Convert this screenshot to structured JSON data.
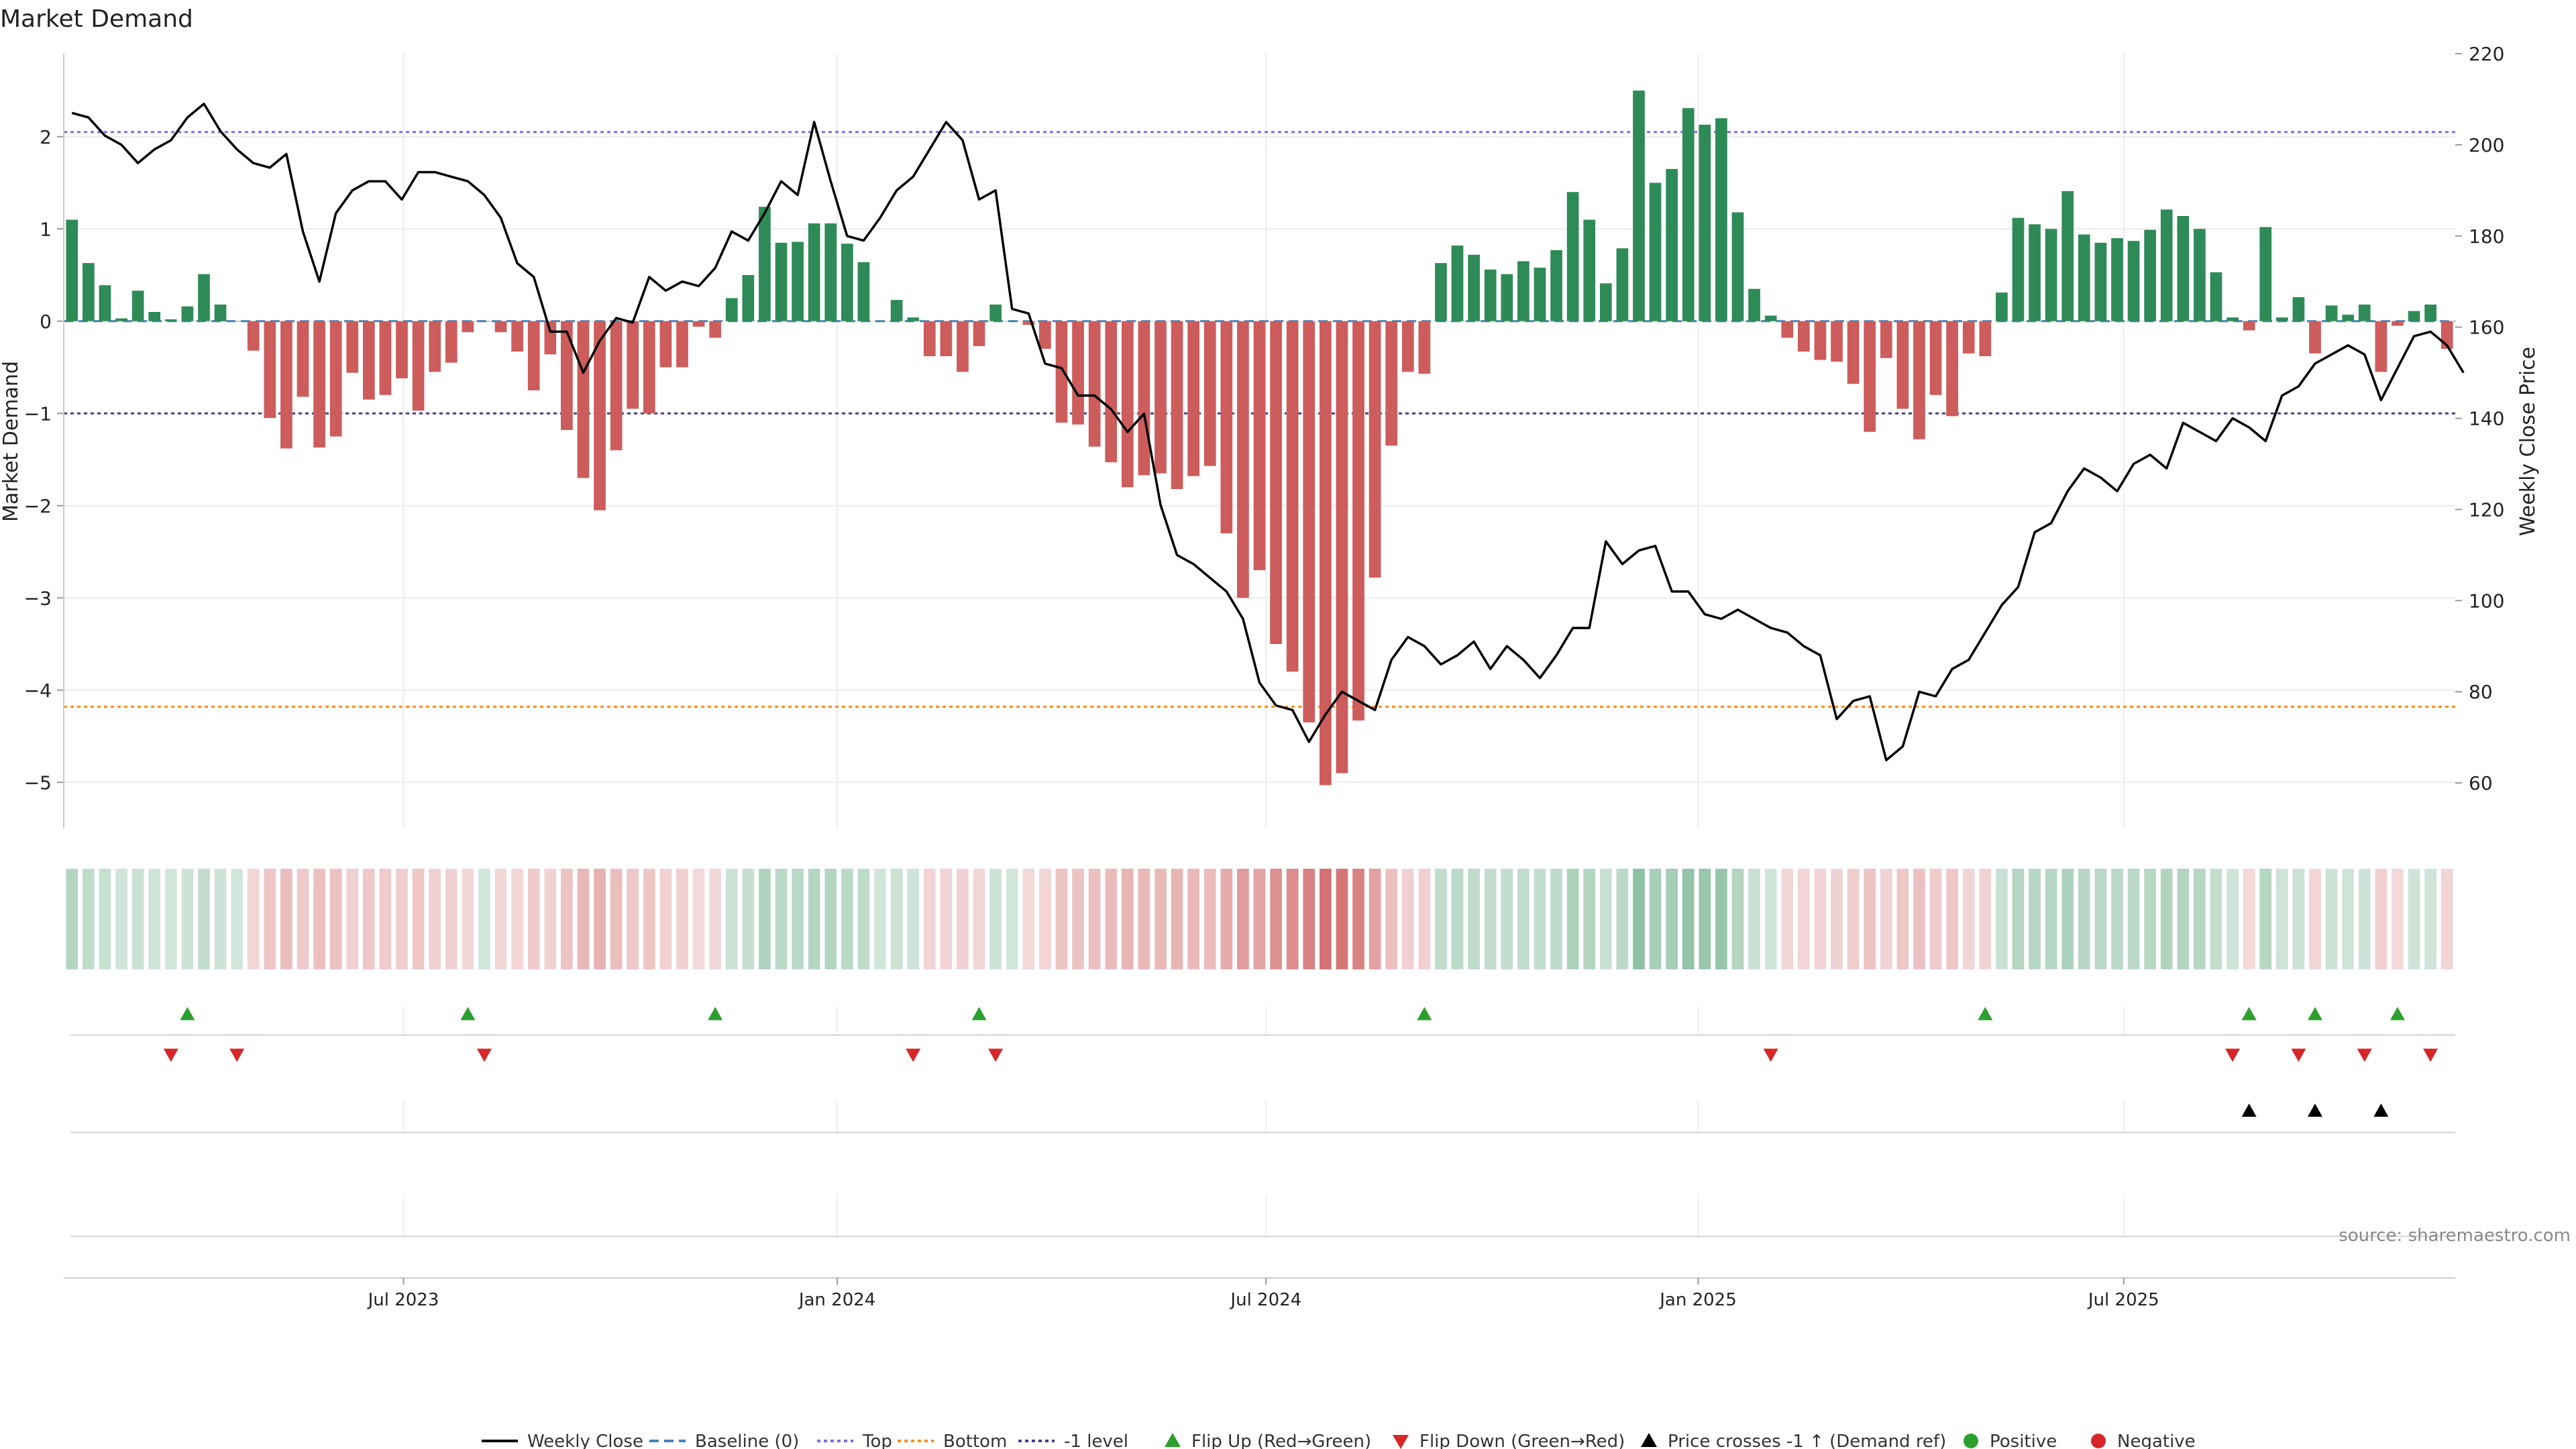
{
  "chart_data": {
    "type": "bar",
    "title": "Market Demand",
    "ylabel_left": "Market Demand",
    "ylabel_right": "Weekly Close Price",
    "ylim_left": [
      -5.5,
      2.9
    ],
    "ylim_right": [
      50,
      220
    ],
    "left_ticks": [
      2,
      1,
      0,
      -1,
      -2,
      -3,
      -4,
      -5
    ],
    "left_tick_labels": [
      "2",
      "1",
      "0",
      "−1",
      "−2",
      "−3",
      "−4",
      "−5"
    ],
    "right_ticks": [
      220,
      200,
      180,
      160,
      140,
      120,
      100,
      80,
      60
    ],
    "right_tick_labels": [
      "220",
      "200",
      "180",
      "160",
      "140",
      "120",
      "100",
      "80",
      "60"
    ],
    "x_tick_labels": [
      "Jul 2023",
      "Jan 2024",
      "Jul 2024",
      "Jan 2025",
      "Jul 2025"
    ],
    "x_tick_indices": [
      20.6,
      46.9,
      72.9,
      99.1,
      124.9
    ],
    "reference_lines": {
      "top": 2.05,
      "bottom": -4.18,
      "minus_one": -1.0,
      "baseline": 0
    },
    "series": [
      {
        "name": "Market Demand",
        "values": [
          1.1,
          0.63,
          0.39,
          0.03,
          0.33,
          0.1,
          0.02,
          0.16,
          0.51,
          0.18,
          0.0,
          -0.32,
          -1.05,
          -1.38,
          -0.82,
          -1.37,
          -1.25,
          -0.56,
          -0.85,
          -0.8,
          -0.62,
          -0.97,
          -0.55,
          -0.45,
          -0.12,
          0.0,
          -0.12,
          -0.33,
          -0.75,
          -0.36,
          -1.18,
          -1.7,
          -2.05,
          -1.4,
          -0.95,
          -1.0,
          -0.5,
          -0.5,
          -0.06,
          -0.18,
          0.25,
          0.5,
          1.24,
          0.85,
          0.86,
          1.06,
          1.06,
          0.84,
          0.64,
          0.0,
          0.23,
          0.04,
          -0.38,
          -0.38,
          -0.55,
          -0.27,
          0.18,
          0.0,
          -0.04,
          -0.3,
          -1.1,
          -1.12,
          -1.36,
          -1.53,
          -1.8,
          -1.67,
          -1.65,
          -1.82,
          -1.68,
          -1.57,
          -2.3,
          -3.0,
          -2.7,
          -3.5,
          -3.8,
          -4.35,
          -5.03,
          -4.9,
          -4.33,
          -2.78,
          -1.35,
          -0.55,
          -0.57,
          0.63,
          0.82,
          0.72,
          0.56,
          0.51,
          0.65,
          0.58,
          0.77,
          1.4,
          1.1,
          0.41,
          0.79,
          2.5,
          1.5,
          1.65,
          2.31,
          2.13,
          2.2,
          1.18,
          0.35,
          0.06,
          -0.18,
          -0.33,
          -0.42,
          -0.44,
          -0.68,
          -1.2,
          -0.4,
          -0.95,
          -1.28,
          -0.8,
          -1.03,
          -0.35,
          -0.38,
          0.31,
          1.12,
          1.05,
          1.0,
          1.41,
          0.94,
          0.85,
          0.9,
          0.87,
          0.99,
          1.21,
          1.14,
          1.0,
          0.53,
          0.04,
          -0.1,
          1.02,
          0.04,
          0.26,
          -0.35,
          0.17,
          0.07,
          0.18,
          -0.55,
          -0.05,
          0.11,
          0.18,
          -0.3
        ]
      },
      {
        "name": "Weekly Close",
        "values": [
          207,
          206,
          202,
          200,
          196,
          199,
          201,
          206,
          209,
          203,
          199,
          196,
          195,
          198,
          181,
          170,
          185,
          190,
          192,
          192,
          188,
          194,
          194,
          193,
          192,
          189,
          184,
          174,
          171,
          159,
          159,
          150,
          157,
          162,
          161,
          171,
          168,
          170,
          169,
          173,
          181,
          179,
          185,
          192,
          189,
          205,
          192,
          180,
          179,
          184,
          190,
          193,
          199,
          205,
          201,
          188,
          190,
          164,
          163,
          152,
          151,
          145,
          145,
          142,
          137,
          141,
          121,
          110,
          108,
          105,
          102,
          96,
          82,
          77,
          76,
          69,
          75,
          80,
          78,
          76,
          87,
          92,
          90,
          86,
          88,
          91,
          85,
          90,
          87,
          83,
          88,
          94,
          94,
          113,
          108,
          111,
          112,
          102,
          102,
          97,
          96,
          98,
          96,
          94,
          93,
          90,
          88,
          74,
          78,
          79,
          65,
          68,
          80,
          79,
          85,
          87,
          93,
          99,
          103,
          115,
          117,
          124,
          129,
          127,
          124,
          130,
          132,
          129,
          139,
          137,
          135,
          140,
          138,
          135,
          145,
          147,
          152,
          154,
          156,
          154,
          144,
          151,
          158,
          159,
          156,
          150
        ]
      }
    ],
    "flip_up_indices": [
      7,
      24,
      39,
      55,
      82,
      116,
      132,
      136,
      141
    ],
    "flip_down_indices": [
      6,
      10,
      25,
      51,
      56,
      103,
      131,
      135,
      139,
      143
    ],
    "price_cross_indices": [
      132,
      136,
      140
    ],
    "legend": [
      "Weekly Close",
      "Baseline (0)",
      "Top",
      "Bottom",
      "-1 level",
      "Flip Up (Red→Green)",
      "Flip Down (Green→Red)",
      "Price crosses -1 ↑ (Demand ref)",
      "Positive",
      "Negative"
    ],
    "legend_placement": "bottom",
    "grid": true
  },
  "colors": {
    "positive": "#2e8b57",
    "negative": "#cd5c5c",
    "line": "#000000",
    "top_line": "#7b68ee",
    "bottom_line": "#ff8c00",
    "minus_one_line": "#483d8b",
    "baseline": "#4682b4",
    "flip_up": "#2ca02c",
    "flip_down": "#d62728",
    "cross": "#000000",
    "grid": "#ececec",
    "axis_text": "#222222"
  },
  "source_text": "source: sharemaestro.com"
}
